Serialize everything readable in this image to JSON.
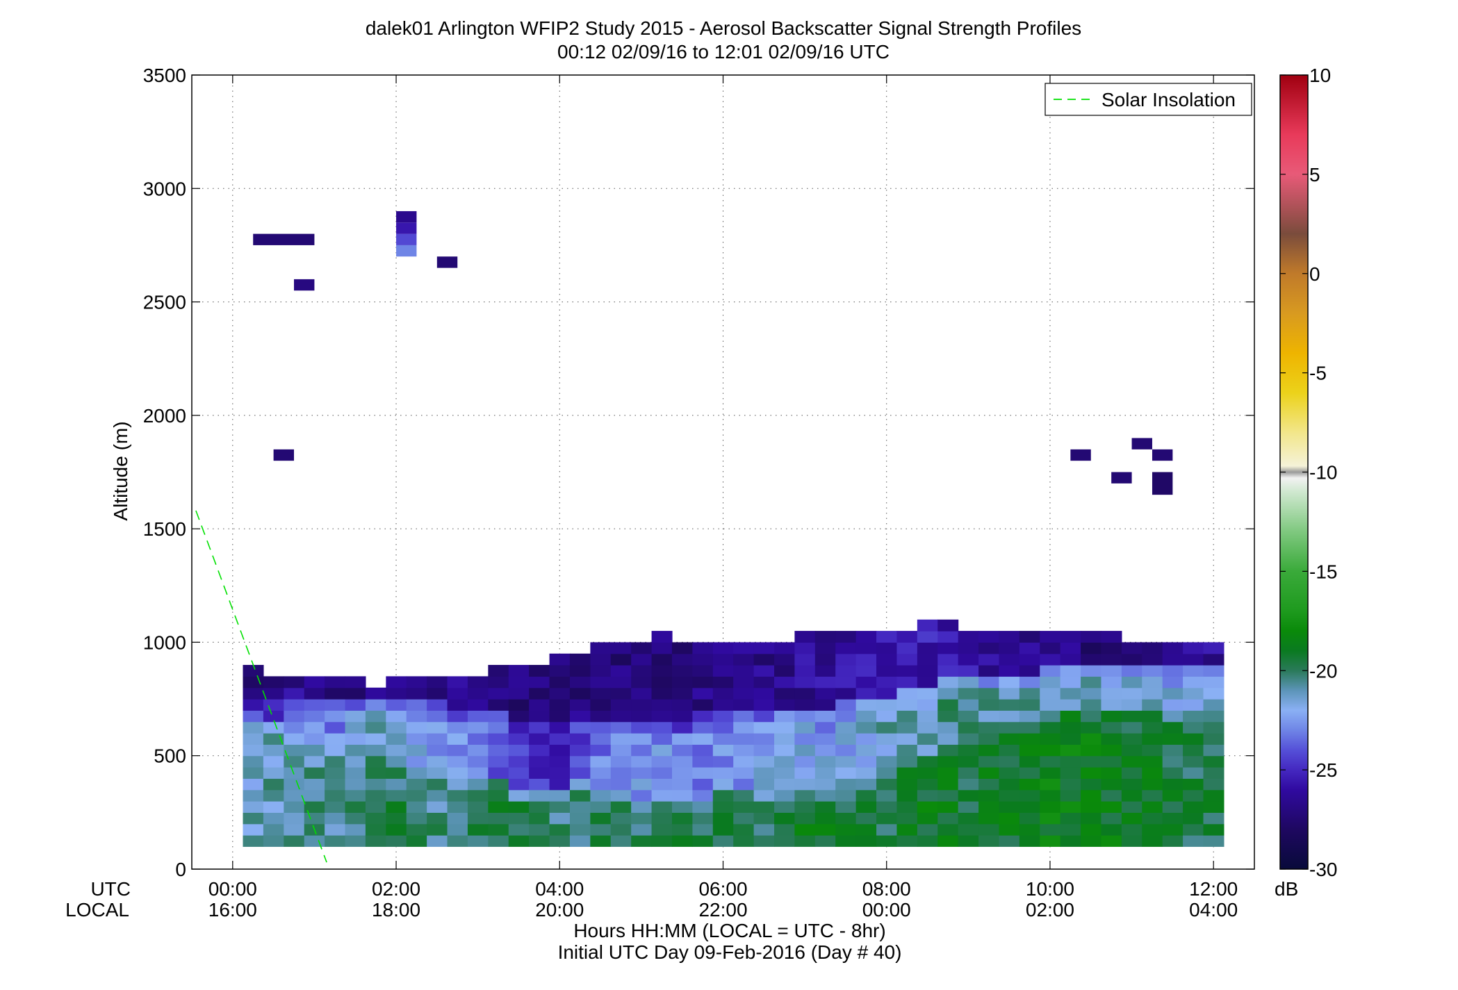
{
  "chart_data": {
    "type": "heatmap",
    "title": "dalek01 Arlington WFIP2 Study 2015 - Aerosol Backscatter Signal Strength Profiles",
    "subtitle": "00:12 02/09/16 to 12:01 02/09/16  UTC",
    "ylabel": "Altitude (m)",
    "xlabel": "Hours HH:MM  (LOCAL = UTC - 8hr)",
    "xlabel2": "Initial UTC Day 09-Feb-2016 (Day # 40)",
    "x_row_labels": [
      "UTC",
      "LOCAL"
    ],
    "xlim_hours": [
      -0.5,
      12.5
    ],
    "ylim": [
      0,
      3500
    ],
    "grid": true,
    "x_ticks_hours": [
      0,
      2,
      4,
      6,
      8,
      10,
      12
    ],
    "x_ticks_utc": [
      "00:00",
      "02:00",
      "04:00",
      "06:00",
      "08:00",
      "10:00",
      "12:00"
    ],
    "x_ticks_local": [
      "16:00",
      "18:00",
      "20:00",
      "22:00",
      "00:00",
      "02:00",
      "04:00"
    ],
    "y_ticks": [
      0,
      500,
      1000,
      1500,
      2000,
      2500,
      3000,
      3500
    ],
    "y_tick_labels": [
      "0",
      "500",
      "1000",
      "1500",
      "2000",
      "2500",
      "3000",
      "3500"
    ],
    "legend": {
      "entries": [
        "Solar Insolation"
      ],
      "placement": "top-right",
      "line_color": "#00e000"
    },
    "solar_insolation": {
      "x_hours": [
        -0.45,
        1.15
      ],
      "y": [
        1580,
        30
      ]
    },
    "colorbar": {
      "label": "dB",
      "range": [
        -30,
        10
      ],
      "ticks": [
        -30,
        -25,
        -20,
        -15,
        -10,
        -5,
        0,
        5,
        10
      ],
      "tick_labels": [
        "-30",
        "-25",
        "-20",
        "-15",
        "-10",
        "-5",
        "0",
        "5",
        "10"
      ],
      "stops": [
        [
          -30,
          "#080a3a"
        ],
        [
          -28,
          "#1e0860"
        ],
        [
          -26,
          "#300aa0"
        ],
        [
          -25,
          "#4428c0"
        ],
        [
          -24,
          "#5550d8"
        ],
        [
          -23,
          "#6f85e6"
        ],
        [
          -22,
          "#8ab0f4"
        ],
        [
          -21,
          "#5c94b8"
        ],
        [
          -20,
          "#2a7a5a"
        ],
        [
          -19,
          "#0a7a20"
        ],
        [
          -18,
          "#0a8a0a"
        ],
        [
          -17,
          "#1e9a1e"
        ],
        [
          -15,
          "#3aaa3a"
        ],
        [
          -13,
          "#7fc87f"
        ],
        [
          -11,
          "#cfe8cf"
        ],
        [
          -10.3,
          "#f2f2f2"
        ],
        [
          -10,
          "#9a9a9a"
        ],
        [
          -9.7,
          "#f5f2d8"
        ],
        [
          -8,
          "#f2e68a"
        ],
        [
          -6,
          "#ecd21a"
        ],
        [
          -4,
          "#eeb400"
        ],
        [
          -2,
          "#d89a20"
        ],
        [
          0,
          "#c07a2a"
        ],
        [
          2,
          "#7a4c3c"
        ],
        [
          3,
          "#a05050"
        ],
        [
          5,
          "#e85a78"
        ],
        [
          7,
          "#e83a5a"
        ],
        [
          10,
          "#a00010"
        ]
      ]
    },
    "time_step_hours": 0.25,
    "altitude_step_m": 50,
    "backscatter_columns": [
      {
        "t": 0.25,
        "layers": [
          [
            100,
            700,
            -21.4
          ],
          [
            700,
            800,
            -25.8
          ],
          [
            800,
            900,
            -27.2
          ]
        ]
      },
      {
        "t": 0.5,
        "layers": [
          [
            100,
            650,
            -21.0
          ],
          [
            650,
            750,
            -24.5
          ],
          [
            750,
            850,
            -26.8
          ]
        ]
      },
      {
        "t": 0.75,
        "layers": [
          [
            100,
            600,
            -20.8
          ],
          [
            600,
            750,
            -23.5
          ],
          [
            750,
            850,
            -26.6
          ]
        ]
      },
      {
        "t": 1.0,
        "layers": [
          [
            100,
            550,
            -20.5
          ],
          [
            550,
            750,
            -22.8
          ],
          [
            750,
            850,
            -26.8
          ]
        ]
      },
      {
        "t": 1.25,
        "layers": [
          [
            100,
            550,
            -20.6
          ],
          [
            550,
            750,
            -23.0
          ],
          [
            750,
            850,
            -26.9
          ]
        ]
      },
      {
        "t": 1.5,
        "layers": [
          [
            100,
            500,
            -20.2
          ],
          [
            500,
            750,
            -21.8
          ],
          [
            750,
            850,
            -27.0
          ]
        ]
      },
      {
        "t": 1.75,
        "layers": [
          [
            100,
            500,
            -19.6
          ],
          [
            500,
            750,
            -21.5
          ],
          [
            750,
            800,
            -27.0
          ]
        ]
      },
      {
        "t": 2.0,
        "layers": [
          [
            100,
            450,
            -19.8
          ],
          [
            450,
            750,
            -21.8
          ],
          [
            750,
            850,
            -27.0
          ]
        ]
      },
      {
        "t": 2.25,
        "layers": [
          [
            100,
            450,
            -20.4
          ],
          [
            450,
            750,
            -22.3
          ],
          [
            750,
            850,
            -26.8
          ]
        ]
      },
      {
        "t": 2.5,
        "layers": [
          [
            100,
            450,
            -20.6
          ],
          [
            450,
            750,
            -22.6
          ],
          [
            750,
            850,
            -27.0
          ]
        ]
      },
      {
        "t": 2.75,
        "layers": [
          [
            100,
            400,
            -20.0
          ],
          [
            400,
            700,
            -22.8
          ],
          [
            700,
            850,
            -26.2
          ]
        ]
      },
      {
        "t": 3.0,
        "layers": [
          [
            100,
            400,
            -19.6
          ],
          [
            400,
            700,
            -23.0
          ],
          [
            700,
            850,
            -26.6
          ]
        ]
      },
      {
        "t": 3.25,
        "layers": [
          [
            100,
            400,
            -19.2
          ],
          [
            400,
            700,
            -23.6
          ],
          [
            700,
            900,
            -27.0
          ]
        ]
      },
      {
        "t": 3.5,
        "layers": [
          [
            100,
            350,
            -19.4
          ],
          [
            350,
            650,
            -24.4
          ],
          [
            650,
            900,
            -27.2
          ]
        ]
      },
      {
        "t": 3.75,
        "layers": [
          [
            100,
            350,
            -20.0
          ],
          [
            350,
            650,
            -25.0
          ],
          [
            650,
            900,
            -27.4
          ]
        ]
      },
      {
        "t": 4.0,
        "layers": [
          [
            100,
            350,
            -20.4
          ],
          [
            350,
            650,
            -25.2
          ],
          [
            650,
            950,
            -27.4
          ]
        ]
      },
      {
        "t": 4.25,
        "layers": [
          [
            100,
            400,
            -20.2
          ],
          [
            400,
            650,
            -23.8
          ],
          [
            650,
            950,
            -27.0
          ]
        ]
      },
      {
        "t": 4.5,
        "layers": [
          [
            100,
            350,
            -19.4
          ],
          [
            350,
            650,
            -23.0
          ],
          [
            650,
            1000,
            -27.2
          ]
        ]
      },
      {
        "t": 4.75,
        "layers": [
          [
            100,
            350,
            -19.6
          ],
          [
            350,
            650,
            -22.6
          ],
          [
            650,
            1000,
            -27.2
          ]
        ]
      },
      {
        "t": 5.0,
        "layers": [
          [
            100,
            300,
            -20.0
          ],
          [
            300,
            650,
            -22.4
          ],
          [
            650,
            1000,
            -27.4
          ]
        ]
      },
      {
        "t": 5.25,
        "layers": [
          [
            100,
            300,
            -19.8
          ],
          [
            300,
            650,
            -22.6
          ],
          [
            650,
            1050,
            -27.2
          ]
        ]
      },
      {
        "t": 5.5,
        "layers": [
          [
            100,
            300,
            -19.6
          ],
          [
            300,
            650,
            -23.0
          ],
          [
            650,
            1000,
            -27.0
          ]
        ]
      },
      {
        "t": 5.75,
        "layers": [
          [
            100,
            300,
            -19.6
          ],
          [
            300,
            700,
            -23.2
          ],
          [
            700,
            1000,
            -26.8
          ]
        ]
      },
      {
        "t": 6.0,
        "layers": [
          [
            100,
            350,
            -19.4
          ],
          [
            350,
            700,
            -22.8
          ],
          [
            700,
            1000,
            -26.6
          ]
        ]
      },
      {
        "t": 6.25,
        "layers": [
          [
            100,
            350,
            -19.6
          ],
          [
            350,
            700,
            -22.4
          ],
          [
            700,
            1000,
            -26.6
          ]
        ]
      },
      {
        "t": 6.5,
        "layers": [
          [
            100,
            350,
            -20.0
          ],
          [
            350,
            700,
            -22.0
          ],
          [
            700,
            1000,
            -26.8
          ]
        ]
      },
      {
        "t": 6.75,
        "layers": [
          [
            100,
            350,
            -19.4
          ],
          [
            350,
            700,
            -21.8
          ],
          [
            700,
            1000,
            -26.6
          ]
        ]
      },
      {
        "t": 7.0,
        "layers": [
          [
            100,
            350,
            -19.2
          ],
          [
            350,
            700,
            -22.0
          ],
          [
            700,
            1050,
            -26.4
          ]
        ]
      },
      {
        "t": 7.25,
        "layers": [
          [
            100,
            350,
            -19.0
          ],
          [
            350,
            700,
            -22.2
          ],
          [
            700,
            1050,
            -26.2
          ]
        ]
      },
      {
        "t": 7.5,
        "layers": [
          [
            100,
            400,
            -19.4
          ],
          [
            400,
            750,
            -22.0
          ],
          [
            750,
            1050,
            -26.0
          ]
        ]
      },
      {
        "t": 7.75,
        "layers": [
          [
            100,
            400,
            -19.6
          ],
          [
            400,
            750,
            -21.6
          ],
          [
            750,
            1050,
            -26.0
          ]
        ]
      },
      {
        "t": 8.0,
        "layers": [
          [
            100,
            400,
            -19.6
          ],
          [
            400,
            750,
            -21.2
          ],
          [
            750,
            1050,
            -25.8
          ]
        ]
      },
      {
        "t": 8.25,
        "layers": [
          [
            100,
            450,
            -19.2
          ],
          [
            450,
            800,
            -21.0
          ],
          [
            800,
            1050,
            -25.6
          ]
        ]
      },
      {
        "t": 8.5,
        "layers": [
          [
            100,
            500,
            -19.0
          ],
          [
            500,
            800,
            -20.8
          ],
          [
            800,
            1100,
            -25.6
          ]
        ]
      },
      {
        "t": 8.75,
        "layers": [
          [
            100,
            550,
            -19.2
          ],
          [
            550,
            850,
            -20.6
          ],
          [
            850,
            1100,
            -25.8
          ]
        ]
      },
      {
        "t": 9.0,
        "layers": [
          [
            100,
            550,
            -19.4
          ],
          [
            550,
            850,
            -20.4
          ],
          [
            850,
            1050,
            -26.0
          ]
        ]
      },
      {
        "t": 9.25,
        "layers": [
          [
            100,
            600,
            -19.2
          ],
          [
            600,
            850,
            -20.6
          ],
          [
            850,
            1050,
            -26.4
          ]
        ]
      },
      {
        "t": 9.5,
        "layers": [
          [
            100,
            650,
            -19.0
          ],
          [
            650,
            850,
            -20.8
          ],
          [
            850,
            1050,
            -26.6
          ]
        ]
      },
      {
        "t": 9.75,
        "layers": [
          [
            100,
            650,
            -18.8
          ],
          [
            650,
            850,
            -21.0
          ],
          [
            850,
            1050,
            -26.6
          ]
        ]
      },
      {
        "t": 10.0,
        "layers": [
          [
            100,
            650,
            -18.6
          ],
          [
            650,
            900,
            -20.6
          ],
          [
            900,
            1050,
            -26.8
          ]
        ]
      },
      {
        "t": 10.25,
        "layers": [
          [
            100,
            700,
            -18.6
          ],
          [
            700,
            900,
            -20.8
          ],
          [
            900,
            1050,
            -27.0
          ]
        ]
      },
      {
        "t": 10.5,
        "layers": [
          [
            100,
            700,
            -18.6
          ],
          [
            700,
            900,
            -21.0
          ],
          [
            900,
            1050,
            -27.2
          ]
        ]
      },
      {
        "t": 10.75,
        "layers": [
          [
            100,
            700,
            -18.8
          ],
          [
            700,
            900,
            -21.2
          ],
          [
            900,
            1050,
            -27.2
          ]
        ]
      },
      {
        "t": 11.0,
        "layers": [
          [
            100,
            700,
            -19.0
          ],
          [
            700,
            900,
            -21.4
          ],
          [
            900,
            1000,
            -27.4
          ]
        ]
      },
      {
        "t": 11.25,
        "layers": [
          [
            100,
            700,
            -19.2
          ],
          [
            700,
            900,
            -21.6
          ],
          [
            900,
            1000,
            -27.4
          ]
        ]
      },
      {
        "t": 11.5,
        "layers": [
          [
            100,
            700,
            -19.4
          ],
          [
            700,
            900,
            -21.8
          ],
          [
            900,
            1000,
            -27.2
          ]
        ]
      },
      {
        "t": 11.75,
        "layers": [
          [
            100,
            700,
            -19.6
          ],
          [
            700,
            900,
            -22.0
          ],
          [
            900,
            1000,
            -26.6
          ]
        ]
      },
      {
        "t": 12.0,
        "layers": [
          [
            100,
            700,
            -19.6
          ],
          [
            700,
            900,
            -22.0
          ],
          [
            900,
            1000,
            -26.4
          ]
        ]
      }
    ],
    "elevated_returns": [
      {
        "t0": 0.25,
        "t1": 1.0,
        "z0": 2750,
        "z1": 2800,
        "db": -27.4
      },
      {
        "t0": 0.75,
        "t1": 1.0,
        "z0": 2550,
        "z1": 2600,
        "db": -27.0
      },
      {
        "t0": 0.5,
        "t1": 0.75,
        "z0": 1800,
        "z1": 1850,
        "db": -27.4
      },
      {
        "t0": 2.0,
        "t1": 2.25,
        "z0": 2700,
        "z1": 2750,
        "db": -23.0
      },
      {
        "t0": 2.0,
        "t1": 2.25,
        "z0": 2750,
        "z1": 2800,
        "db": -24.2
      },
      {
        "t0": 2.0,
        "t1": 2.25,
        "z0": 2800,
        "z1": 2850,
        "db": -25.6
      },
      {
        "t0": 2.0,
        "t1": 2.25,
        "z0": 2850,
        "z1": 2900,
        "db": -26.6
      },
      {
        "t0": 2.5,
        "t1": 2.75,
        "z0": 2650,
        "z1": 2700,
        "db": -27.4
      },
      {
        "t0": 10.25,
        "t1": 10.5,
        "z0": 1800,
        "z1": 1850,
        "db": -27.4
      },
      {
        "t0": 10.75,
        "t1": 11.0,
        "z0": 1700,
        "z1": 1750,
        "db": -27.4
      },
      {
        "t0": 11.0,
        "t1": 11.25,
        "z0": 1850,
        "z1": 1900,
        "db": -27.4
      },
      {
        "t0": 11.25,
        "t1": 11.5,
        "z0": 1800,
        "z1": 1850,
        "db": -27.4
      },
      {
        "t0": 11.25,
        "t1": 11.5,
        "z0": 1650,
        "z1": 1750,
        "db": -27.8
      }
    ]
  }
}
